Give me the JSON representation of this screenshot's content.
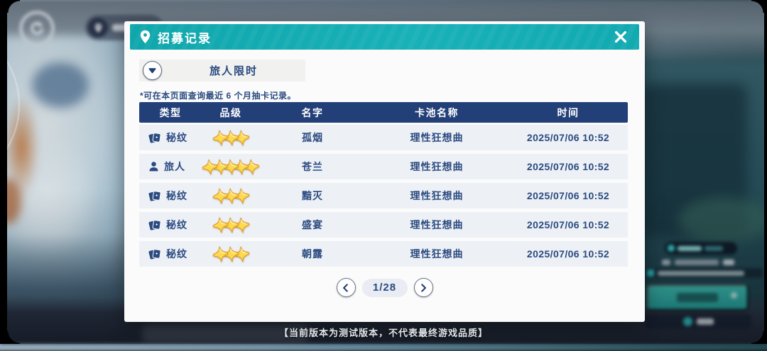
{
  "dialog": {
    "title": "招募记录",
    "filter_label": "旅人限时",
    "note": "*可在本页面查询最近 6 个月抽卡记录。",
    "columns": [
      "类型",
      "品级",
      "名字",
      "卡池名称",
      "时间"
    ],
    "rows": [
      {
        "type": "秘纹",
        "type_icon": "cards-icon",
        "stars": 3,
        "name": "孤烟",
        "pool": "理性狂想曲",
        "time": "2025/07/06 10:52"
      },
      {
        "type": "旅人",
        "type_icon": "person-icon",
        "stars": 5,
        "name": "苍兰",
        "pool": "理性狂想曲",
        "time": "2025/07/06 10:52"
      },
      {
        "type": "秘纹",
        "type_icon": "cards-icon",
        "stars": 3,
        "name": "黯灭",
        "pool": "理性狂想曲",
        "time": "2025/07/06 10:52"
      },
      {
        "type": "秘纹",
        "type_icon": "cards-icon",
        "stars": 3,
        "name": "盛宴",
        "pool": "理性狂想曲",
        "time": "2025/07/06 10:52"
      },
      {
        "type": "秘纹",
        "type_icon": "cards-icon",
        "stars": 3,
        "name": "朝露",
        "pool": "理性狂想曲",
        "time": "2025/07/06 10:52"
      }
    ],
    "pagination": {
      "current_page": "1/28"
    }
  },
  "footer": {
    "disclaimer": "【当前版本为测试版本，不代表最终游戏品质】"
  },
  "colors": {
    "accent_teal": "#14ABB1",
    "table_header_navy": "#233F78",
    "text_navy": "#2B4A80",
    "row_bg": "#EDF1F6",
    "star_gold": "#FFD94E",
    "star_outline": "#DE9F2E"
  }
}
